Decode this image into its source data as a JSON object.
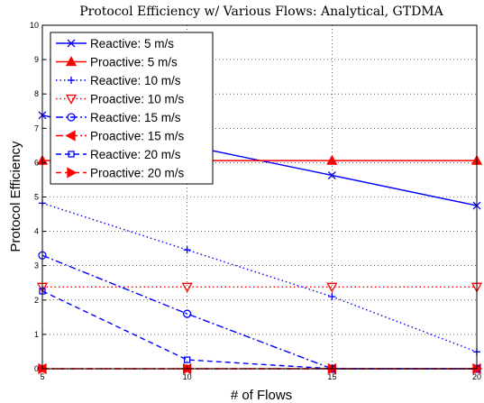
{
  "chart_data": {
    "type": "line",
    "title": "Protocol Efficiency w/ Various Flows: Analytical, GTDMA",
    "xlabel": "# of Flows",
    "ylabel": "Protocol Efficiency",
    "xlim": [
      5,
      20
    ],
    "ylim": [
      0,
      10
    ],
    "x_ticks": [
      "5",
      "10",
      "15",
      "20"
    ],
    "y_ticks": [
      "0",
      "1",
      "2",
      "3",
      "4",
      "5",
      "6",
      "7",
      "8",
      "9",
      "10"
    ],
    "grid": true,
    "legend_position": "top-left",
    "x": [
      5,
      10,
      15,
      20
    ],
    "series": [
      {
        "name": "Reactive: 5 m/s",
        "values": [
          7.38,
          6.5,
          5.63,
          4.75
        ],
        "color": "#0000ff",
        "dash": "solid",
        "marker": "x"
      },
      {
        "name": "Proactive: 5 m/s",
        "values": [
          6.06,
          6.06,
          6.06,
          6.06
        ],
        "color": "#ff0000",
        "dash": "solid",
        "marker": "triangle-up"
      },
      {
        "name": "Reactive: 10 m/s",
        "values": [
          4.82,
          3.46,
          2.1,
          0.49
        ],
        "color": "#0000ff",
        "dash": "dotted",
        "marker": "plus"
      },
      {
        "name": "Proactive: 10 m/s",
        "values": [
          2.38,
          2.38,
          2.38,
          2.38
        ],
        "color": "#ff0000",
        "dash": "dotted",
        "marker": "triangle-down"
      },
      {
        "name": "Reactive: 15 m/s",
        "values": [
          3.3,
          1.6,
          0.0,
          0.0
        ],
        "color": "#0000ff",
        "dash": "dashdot",
        "marker": "circle"
      },
      {
        "name": "Proactive: 15 m/s",
        "values": [
          0.0,
          0.0,
          0.0,
          0.0
        ],
        "color": "#ff0000",
        "dash": "dashdot",
        "marker": "triangle-left"
      },
      {
        "name": "Reactive: 20 m/s",
        "values": [
          2.26,
          0.26,
          0.0,
          0.0
        ],
        "color": "#0000ff",
        "dash": "dashed",
        "marker": "square"
      },
      {
        "name": "Proactive: 20 m/s",
        "values": [
          0.0,
          0.0,
          0.0,
          0.0
        ],
        "color": "#ff0000",
        "dash": "dashed",
        "marker": "triangle-right"
      }
    ]
  }
}
